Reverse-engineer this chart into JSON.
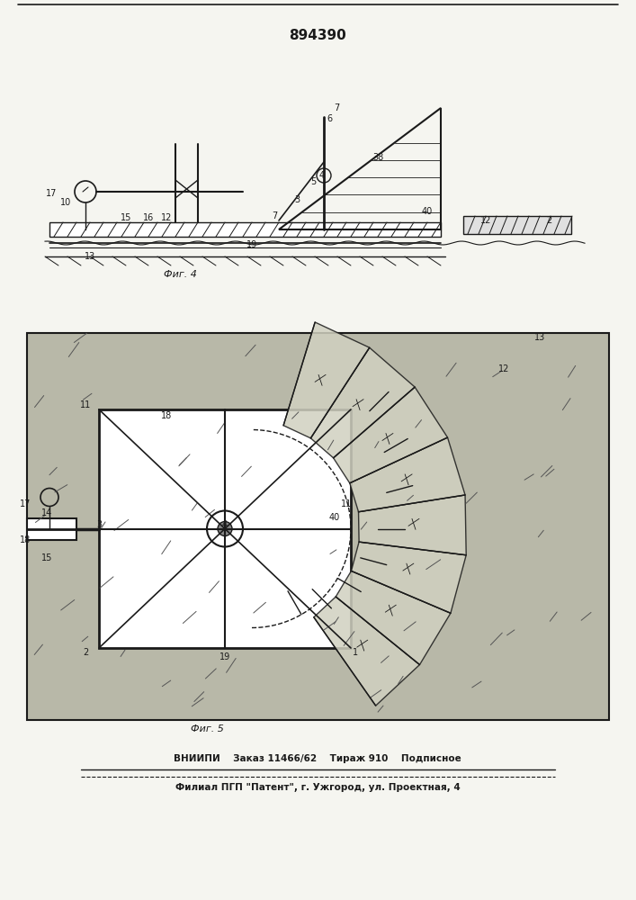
{
  "patent_number": "894390",
  "fig4_label": "Фиг. 4",
  "fig5_label": "Фиг. 5",
  "footer_line1": "ВНИИПИ    Заказ 11466/62    Тираж 910    Подписное",
  "footer_line2": "Филиал ПГП \"Патент\", г. Ужгород, ул. Проектная, 4",
  "bg_color": "#f5f5f0",
  "drawing_color": "#1a1a1a",
  "fig5_bg": "#c8c8b8"
}
